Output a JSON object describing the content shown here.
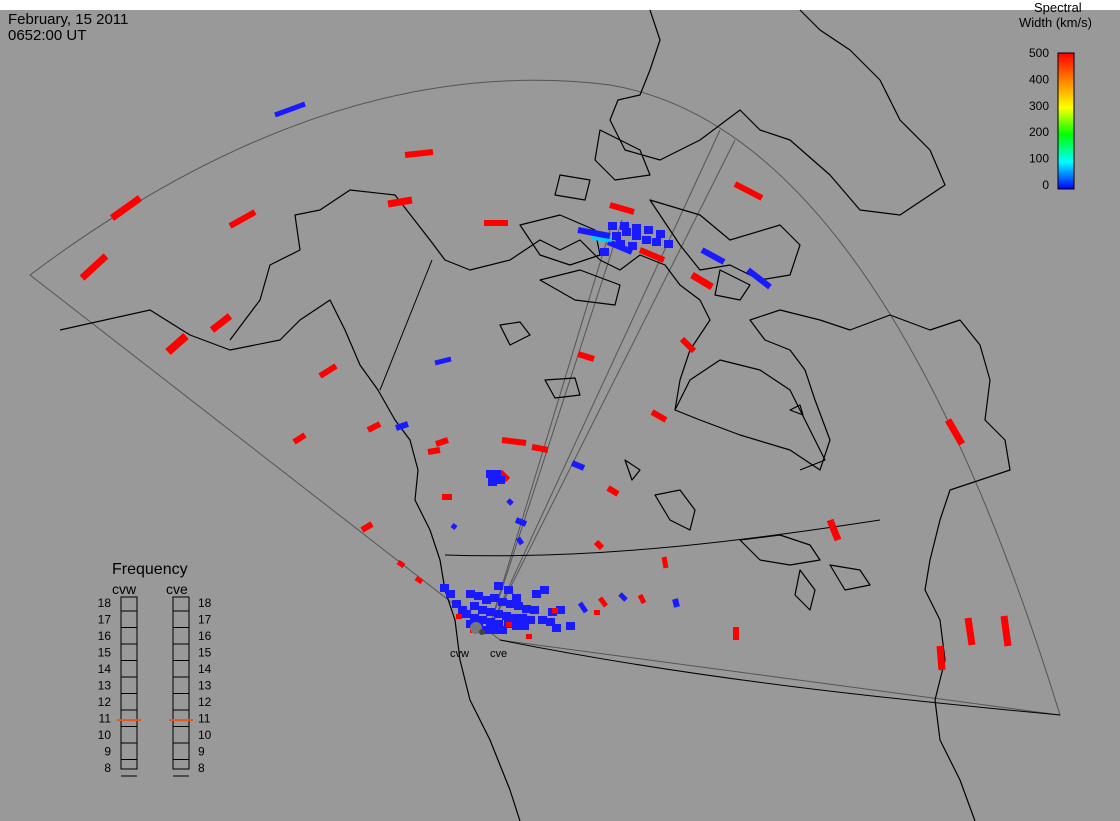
{
  "header": {
    "date": "February, 15 2011",
    "time": "0652:00 UT"
  },
  "colorbar": {
    "title_line1": "Spectral",
    "title_line2": "Width (km/s)",
    "ticks": [
      "500",
      "400",
      "300",
      "200",
      "100",
      "0"
    ],
    "colors": [
      "#ff0000",
      "#ff8000",
      "#ffff00",
      "#00ff00",
      "#00ffff",
      "#0000ff"
    ]
  },
  "radars": {
    "west": "cvw",
    "east": "cve"
  },
  "frequency_panel": {
    "title": "Frequency",
    "left_label": "cvw",
    "right_label": "cve",
    "ticks": [
      "18",
      "17",
      "16",
      "15",
      "14",
      "13",
      "12",
      "11",
      "10",
      "9",
      "8"
    ],
    "cvw_value": 10.9,
    "cve_value": 10.9,
    "marker_color": "#e05a1e"
  },
  "colors": {
    "background": "#999999",
    "red": "#ff0000",
    "blue": "#1a1aff",
    "cyan": "#00cfff"
  }
}
